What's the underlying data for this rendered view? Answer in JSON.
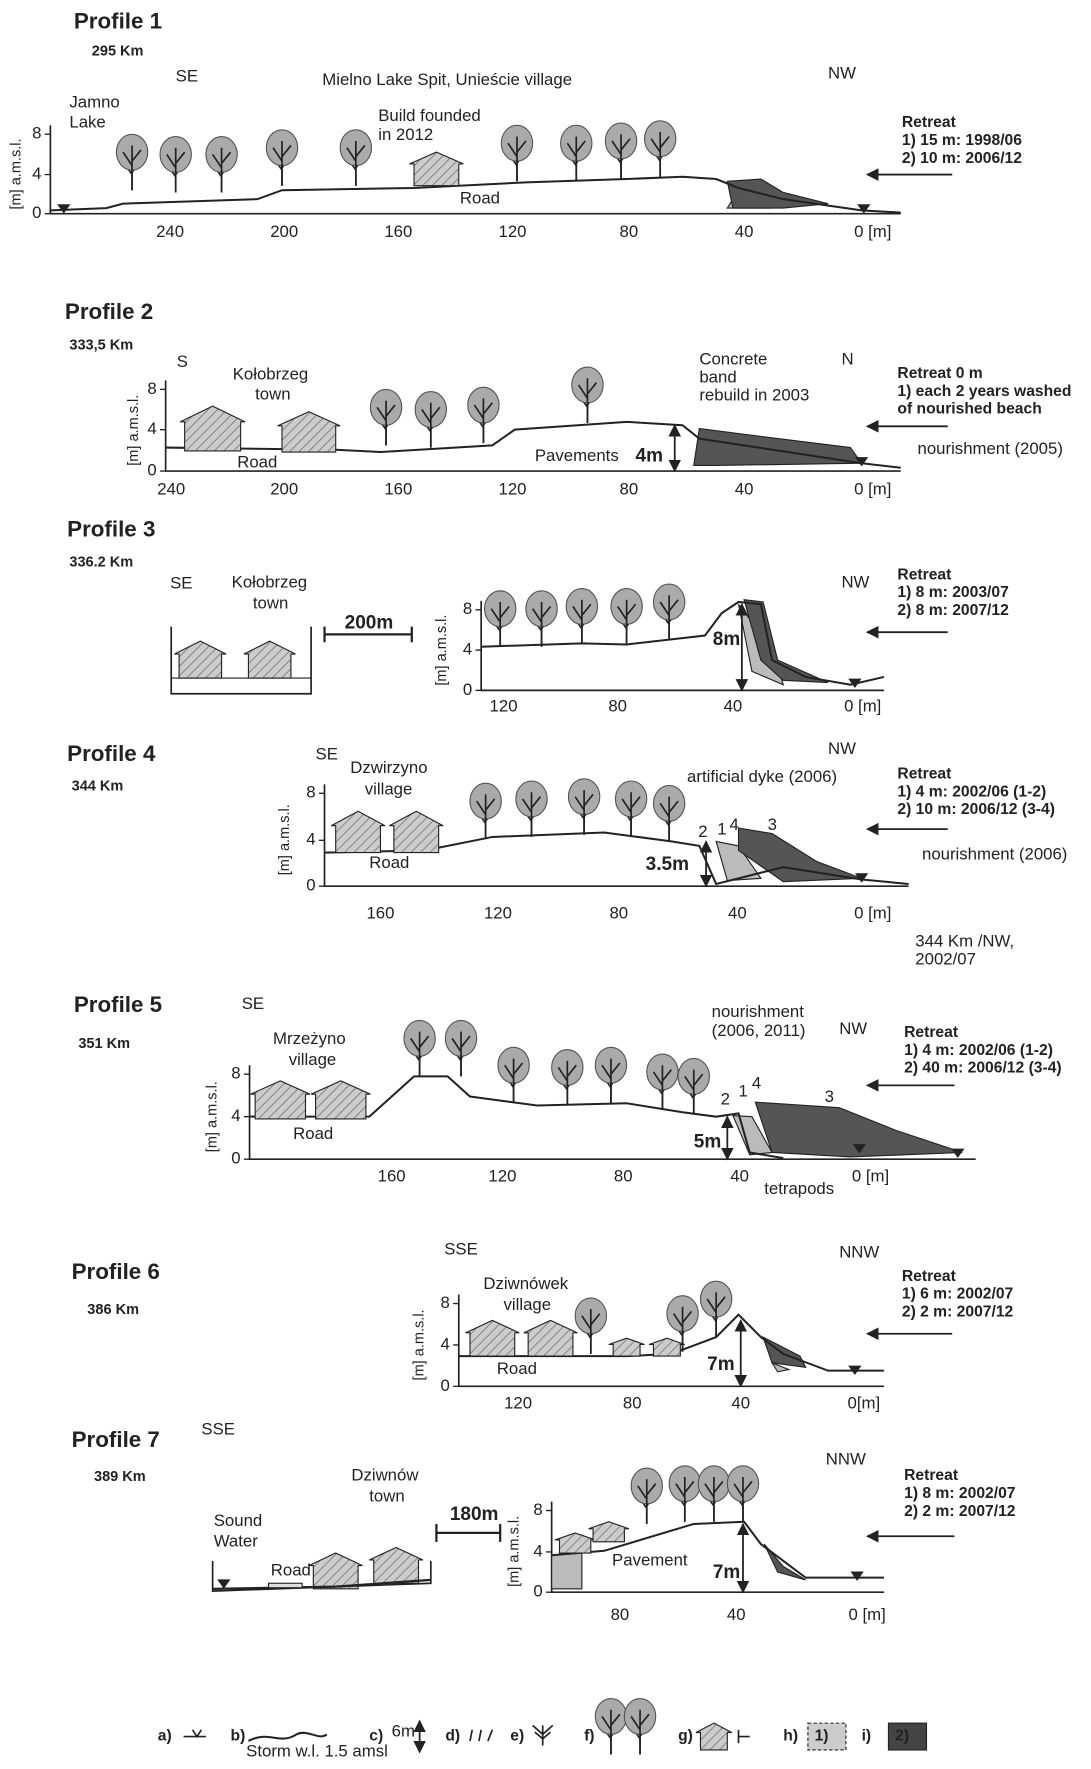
{
  "profiles": [
    {
      "title": "Profile 1",
      "km": "295 Km",
      "labels": [
        "SE",
        "Mielno Lake Spit, Unieście village",
        "NW",
        "Jamno",
        "Lake",
        "Build founded",
        "in 2012",
        "Road"
      ],
      "axis_label": "[m] a.m.s.l.",
      "yticks": [
        "0",
        "4",
        "8"
      ],
      "xticks": [
        "240",
        "200",
        "160",
        "120",
        "80",
        "40",
        "0  [m]"
      ],
      "retreat": [
        "Retreat",
        "1) 15 m: 1998/06",
        "2) 10 m: 2006/12"
      ]
    },
    {
      "title": "Profile 2",
      "km": "333,5 Km",
      "labels": [
        "S",
        "Kołobrzeg",
        "town",
        "Concrete",
        "band",
        "rebuild in 2003",
        "N",
        "Road",
        "Pavements",
        "4m",
        "nourishment (2005)"
      ],
      "axis_label": "[m] a.m.s.l.",
      "yticks": [
        "0",
        "4",
        "8"
      ],
      "xticks": [
        "240",
        "200",
        "160",
        "120",
        "80",
        "40",
        "0  [m]"
      ],
      "retreat": [
        "Retreat 0 m",
        "1) each 2 years washed",
        "of nourished beach"
      ]
    },
    {
      "title": "Profile 3",
      "km": "336.2 Km",
      "labels": [
        "SE",
        "Kołobrzeg",
        "town",
        "200m",
        "NW",
        "8m"
      ],
      "axis_label": "[m] a.m.s.l.",
      "yticks": [
        "0",
        "4",
        "8"
      ],
      "xticks": [
        "120",
        "80",
        "40",
        "0  [m]"
      ],
      "retreat": [
        "Retreat",
        "1) 8 m: 2003/07",
        "2) 8 m: 2007/12"
      ]
    },
    {
      "title": "Profile 4",
      "km": "344 Km",
      "labels": [
        "SE",
        "Dzwirzyno",
        "village",
        "NW",
        "artificial dyke  (2006)",
        "2",
        "1",
        "4",
        "3",
        "Road",
        "3.5m",
        "nourishment (2006)",
        "344 Km /NW,",
        "2002/07"
      ],
      "axis_label": "[m] a.m.s.l.",
      "yticks": [
        "0",
        "4",
        "8"
      ],
      "xticks": [
        "160",
        "120",
        "80",
        "40",
        "0  [m]"
      ],
      "retreat": [
        "Retreat",
        "1)  4 m: 2002/06 (1-2)",
        "2) 10 m: 2006/12 (3-4)"
      ]
    },
    {
      "title": "Profile 5",
      "km": "351 Km",
      "labels": [
        "SE",
        "Mrzeżyno",
        "village",
        "nourishment",
        "(2006, 2011)",
        "NW",
        "2",
        "1",
        "4",
        "3",
        "Road",
        "5m",
        "tetrapods"
      ],
      "axis_label": "[m] a.m.s.l.",
      "yticks": [
        "0",
        "4",
        "8"
      ],
      "xticks": [
        "160",
        "120",
        "80",
        "40",
        "0 [m]"
      ],
      "retreat": [
        "Retreat",
        "1)  4 m: 2002/06 (1-2)",
        "2) 40 m: 2006/12 (3-4)"
      ]
    },
    {
      "title": "Profile 6",
      "km": "386 Km",
      "labels": [
        "SSE",
        "NNW",
        "Dziwnówek",
        "village",
        "Road",
        "7m"
      ],
      "axis_label": "[m] a.m.s.l.",
      "yticks": [
        "0",
        "4",
        "8"
      ],
      "xticks": [
        "120",
        "80",
        "40",
        "0[m]"
      ],
      "retreat": [
        "Retreat",
        "1) 6 m: 2002/07",
        "2) 2 m: 2007/12"
      ]
    },
    {
      "title": "Profile 7",
      "km": "389 Km",
      "labels": [
        "SSE",
        "Dziwnów",
        "town",
        "NNW",
        "Sound",
        "Water",
        "180m",
        "Road",
        "Pavement",
        "7m"
      ],
      "axis_label": "[m] a.m.s.l.",
      "yticks": [
        "0",
        "4",
        "8"
      ],
      "xticks": [
        "80",
        "40",
        "0  [m]"
      ],
      "retreat": [
        "Retreat",
        "1) 8 m: 2002/07",
        "2) 2 m: 2007/12"
      ]
    }
  ],
  "legend": {
    "items": [
      "a)",
      "b)",
      "c)",
      "d)",
      "e)",
      "f)",
      "g)",
      "h)",
      "i)"
    ],
    "storm": "Storm  w.l. 1.5 amsl",
    "arrow": "6m",
    "box1": "1)",
    "box2": "2)"
  }
}
